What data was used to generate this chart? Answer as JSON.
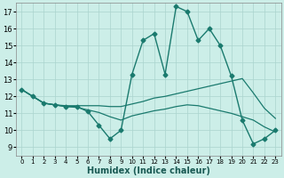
{
  "title": "",
  "xlabel": "Humidex (Indice chaleur)",
  "ylabel": "",
  "background_color": "#cceee8",
  "grid_color": "#aad4ce",
  "line_color": "#1a7a6e",
  "xlim": [
    -0.5,
    23.5
  ],
  "ylim": [
    8.5,
    17.5
  ],
  "xticks": [
    0,
    1,
    2,
    3,
    4,
    5,
    6,
    7,
    8,
    9,
    10,
    11,
    12,
    13,
    14,
    15,
    16,
    17,
    18,
    19,
    20,
    21,
    22,
    23
  ],
  "yticks": [
    9,
    10,
    11,
    12,
    13,
    14,
    15,
    16,
    17
  ],
  "series": [
    {
      "x": [
        0,
        1,
        2,
        3,
        4,
        5,
        6,
        7,
        8,
        9,
        10,
        11,
        12,
        13,
        14,
        15,
        16,
        17,
        18,
        19,
        20,
        21,
        22,
        23
      ],
      "y": [
        12.4,
        12.0,
        11.6,
        11.5,
        11.4,
        11.4,
        11.1,
        10.3,
        9.5,
        10.0,
        13.3,
        15.3,
        15.7,
        13.3,
        17.3,
        17.0,
        15.3,
        16.0,
        15.0,
        13.2,
        10.6,
        9.2,
        9.5,
        10.0
      ],
      "marker": "D",
      "markersize": 2.5,
      "linewidth": 1.0
    },
    {
      "x": [
        0,
        1,
        2,
        3,
        4,
        5,
        6,
        7,
        8,
        9,
        10,
        11,
        12,
        13,
        14,
        15,
        16,
        17,
        18,
        19,
        20,
        21,
        22,
        23
      ],
      "y": [
        12.4,
        12.0,
        11.6,
        11.5,
        11.45,
        11.45,
        11.45,
        11.45,
        11.4,
        11.4,
        11.55,
        11.7,
        11.9,
        12.0,
        12.15,
        12.3,
        12.45,
        12.6,
        12.75,
        12.9,
        13.05,
        12.2,
        11.3,
        10.7
      ],
      "marker": null,
      "markersize": 0,
      "linewidth": 0.9
    },
    {
      "x": [
        0,
        1,
        2,
        3,
        4,
        5,
        6,
        7,
        8,
        9,
        10,
        11,
        12,
        13,
        14,
        15,
        16,
        17,
        18,
        19,
        20,
        21,
        22,
        23
      ],
      "y": [
        12.4,
        12.0,
        11.6,
        11.5,
        11.4,
        11.35,
        11.2,
        11.05,
        10.8,
        10.6,
        10.85,
        11.0,
        11.15,
        11.25,
        11.4,
        11.5,
        11.45,
        11.3,
        11.15,
        11.0,
        10.8,
        10.6,
        10.2,
        9.9
      ],
      "marker": null,
      "markersize": 0,
      "linewidth": 0.9
    }
  ]
}
